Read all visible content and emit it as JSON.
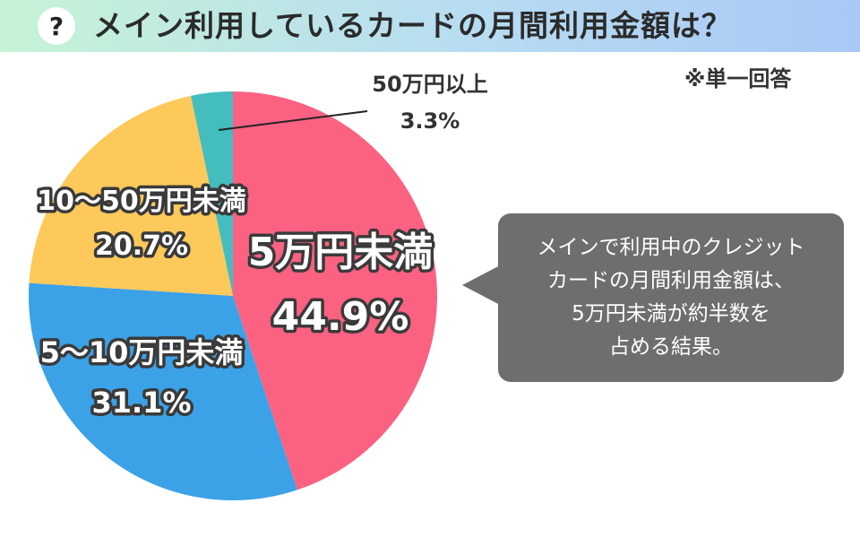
{
  "header": {
    "icon": "?",
    "title": "メイン利用しているカードの月間利用金額は？"
  },
  "note": "※単一回答",
  "callout": {
    "lines": [
      "メインで利用中のクレジット",
      "カードの月間利用金額は、",
      "5万円未満が約半数を",
      "占める結果。"
    ]
  },
  "chart_data": {
    "type": "pie",
    "title": "メイン利用しているカードの月間利用金額は？",
    "slices": [
      {
        "label": "5万円未満",
        "value": 44.9,
        "value_label": "44.9%",
        "color": "#fb6282"
      },
      {
        "label": "5〜10万円未満",
        "value": 31.1,
        "value_label": "31.1%",
        "color": "#3ca2e7"
      },
      {
        "label": "10〜50万円未満",
        "value": 20.7,
        "value_label": "20.7%",
        "color": "#fdc95a"
      },
      {
        "label": "50万円以上",
        "value": 3.3,
        "value_label": "3.3%",
        "color": "#43bdbe"
      }
    ],
    "start": "12 o'clock",
    "direction": "clockwise"
  }
}
